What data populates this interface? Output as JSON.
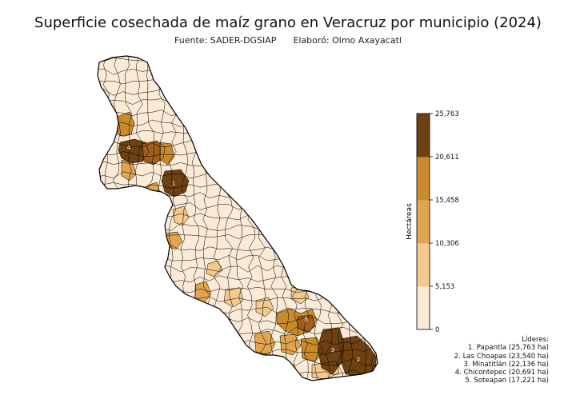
{
  "title": "Superficie cosechada de maíz grano en Veracruz por municipio (2024)",
  "subtitle": {
    "source": "Fuente: SADER-DGSIAP",
    "author": "Elaboró: Olmo Axayacatl"
  },
  "colorbar": {
    "label": "Hectáreas",
    "ticks": [
      "0",
      "5,153",
      "10,306",
      "15,458",
      "20,611",
      "25,763"
    ],
    "colors": [
      "#fbead6",
      "#f3c98e",
      "#e0a54e",
      "#c98a2c",
      "#a0601c",
      "#6e4112"
    ]
  },
  "leaders": {
    "heading": "Líderes:",
    "items": [
      "1. Papantla (25,763 ha)",
      "2. Las Choapas (23,540 ha)",
      "3. Minatitlán (22,136 ha)",
      "4. Chicontepec (20,691 ha)",
      "5. Soteapan (17,221 ha)"
    ]
  },
  "map_labels": [
    "1",
    "2",
    "3",
    "4",
    "5"
  ],
  "colors": {
    "outline": "#000000",
    "base": "#fbead6"
  }
}
